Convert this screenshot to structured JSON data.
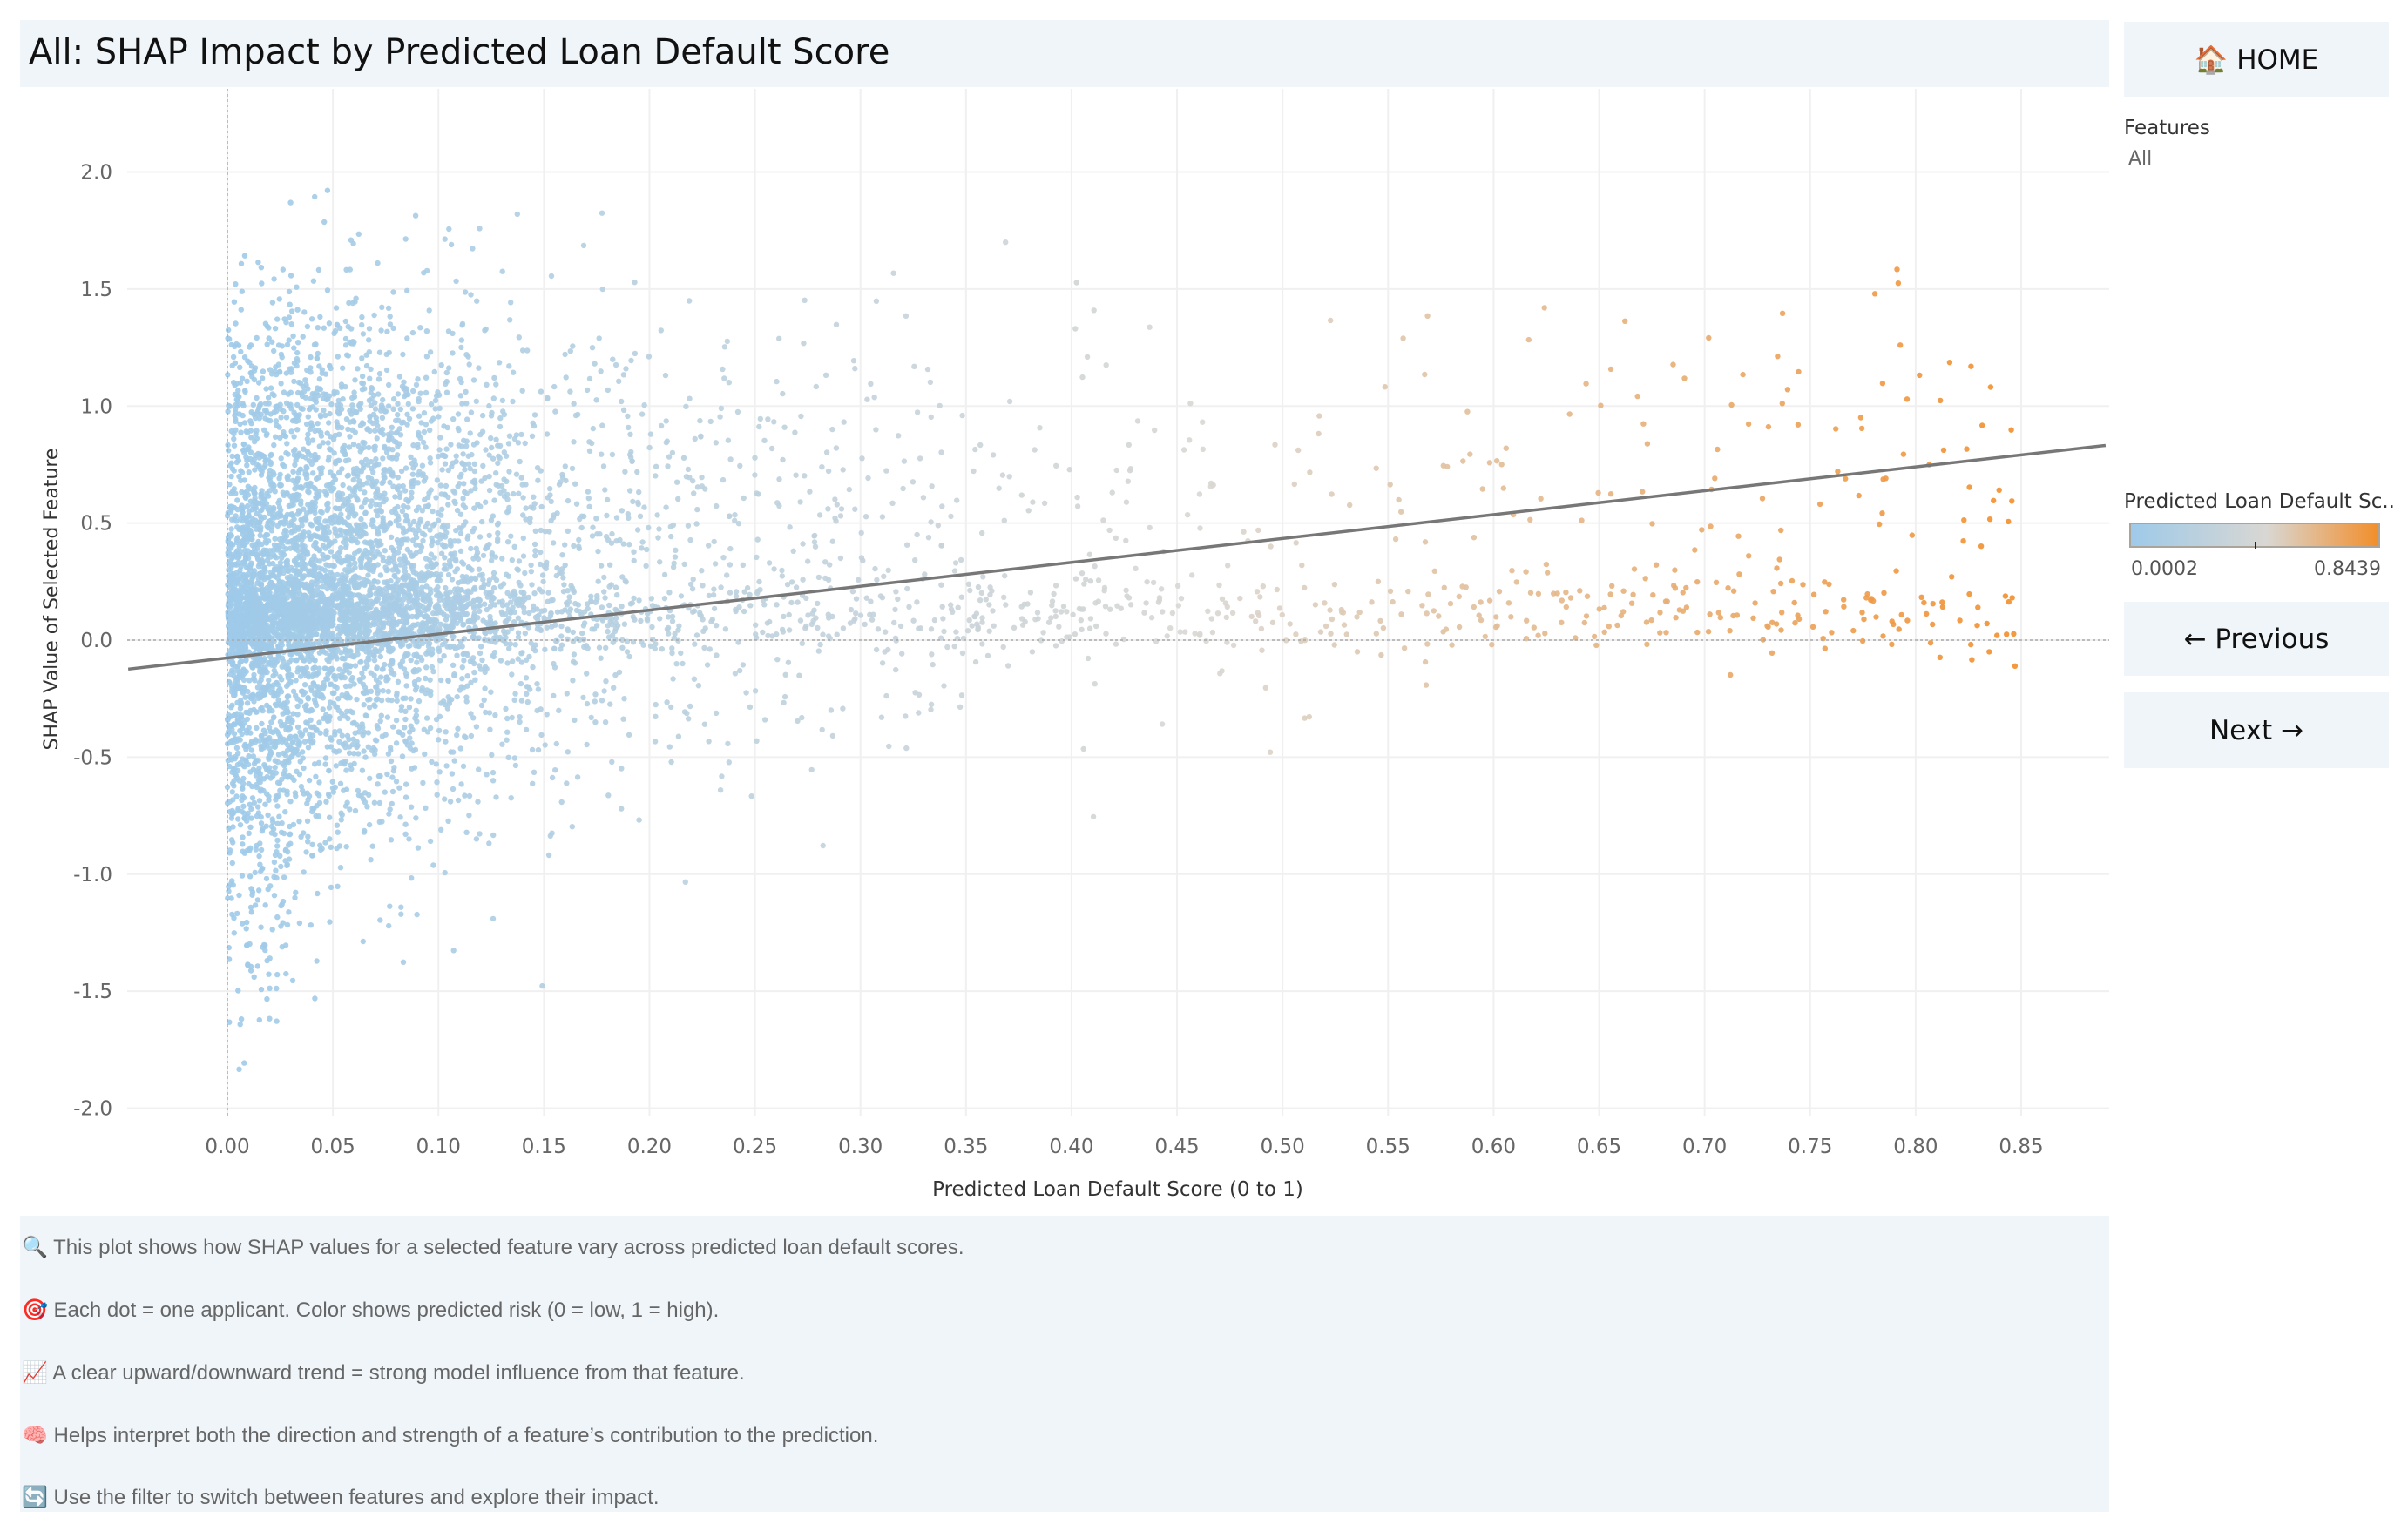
{
  "title": "All: SHAP Impact by Predicted Loan Default Score",
  "buttons": {
    "home": "🏠 HOME",
    "previous": "← Previous",
    "next": "Next →"
  },
  "filter": {
    "label": "Features",
    "value": "All"
  },
  "legend": {
    "title": "Predicted Loan Default Sc..",
    "min": "0.0002",
    "max": "0.8439",
    "colors": {
      "low": "#9ecae9",
      "mid": "#d9d7d3",
      "high": "#f28e2b"
    }
  },
  "notes": [
    "🔍 This plot shows how SHAP values for a selected feature vary across predicted loan default scores.",
    "🎯 Each dot = one applicant. Color shows predicted risk (0 = low, 1 = high).",
    "📈 A clear upward/downward trend = strong model influence from that feature.",
    "🧠 Helps interpret both the direction and strength of a feature’s contribution to the prediction.",
    "🔄 Use the filter to switch between features and explore their impact."
  ],
  "chart_data": {
    "type": "scatter",
    "title": "All: SHAP Impact by Predicted Loan Default Score",
    "xlabel": "Predicted Loan Default Score (0 to 1)",
    "ylabel": "SHAP Value of Selected Feature",
    "xlim": [
      -0.047,
      0.89
    ],
    "ylim": [
      -2.06,
      2.2
    ],
    "xticks": [
      "0.00",
      "0.05",
      "0.10",
      "0.15",
      "0.20",
      "0.25",
      "0.30",
      "0.35",
      "0.40",
      "0.45",
      "0.50",
      "0.55",
      "0.60",
      "0.65",
      "0.70",
      "0.75",
      "0.80",
      "0.85"
    ],
    "yticks": [
      "2.0",
      "1.5",
      "1.0",
      "0.5",
      "0.0",
      "-0.5",
      "-1.0",
      "-1.5",
      "-2.0"
    ],
    "grid": true,
    "reference_lines": {
      "x": 0,
      "y": 0
    },
    "trend_line": {
      "slope": 1.02,
      "intercept": -0.076
    },
    "color_encoding": {
      "field": "Predicted Loan Default Score",
      "min": 0.0002,
      "max": 0.8439
    },
    "legend": "right"
  }
}
